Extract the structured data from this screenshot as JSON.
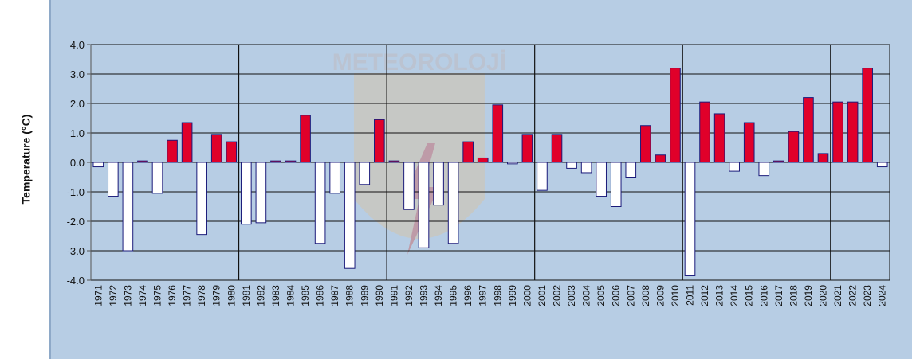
{
  "chart_data": {
    "type": "bar",
    "title": "",
    "xlabel": "",
    "ylabel": "Temperature (°C)",
    "ylim": [
      -4.0,
      4.0
    ],
    "yticks": [
      "4.0",
      "3.0",
      "2.0",
      "1.0",
      "0.0",
      "-1.0",
      "-2.0",
      "-3.0",
      "-4.0"
    ],
    "grid": true,
    "categories": [
      "1971",
      "1972",
      "1973",
      "1974",
      "1975",
      "1976",
      "1977",
      "1978",
      "1979",
      "1980",
      "1981",
      "1982",
      "1983",
      "1984",
      "1985",
      "1986",
      "1987",
      "1988",
      "1989",
      "1990",
      "1991",
      "1992",
      "1993",
      "1994",
      "1995",
      "1996",
      "1997",
      "1998",
      "1999",
      "2000",
      "2001",
      "2002",
      "2003",
      "2004",
      "2005",
      "2006",
      "2007",
      "2008",
      "2009",
      "2010",
      "2011",
      "2012",
      "2013",
      "2014",
      "2015",
      "2016",
      "2017",
      "2018",
      "2019",
      "2020",
      "2021",
      "2022",
      "2023",
      "2024"
    ],
    "values": [
      -0.15,
      -1.15,
      -3.0,
      0.05,
      -1.05,
      0.75,
      1.35,
      -2.45,
      0.95,
      0.7,
      -2.1,
      -2.05,
      0.05,
      0.05,
      1.6,
      -2.75,
      -1.05,
      -3.6,
      -0.75,
      1.45,
      0.05,
      -1.6,
      -2.9,
      -1.45,
      -2.75,
      0.7,
      0.15,
      1.95,
      -0.05,
      0.95,
      -0.95,
      0.95,
      -0.2,
      -0.35,
      -1.15,
      -1.5,
      -0.5,
      1.25,
      0.25,
      3.2,
      -3.85,
      2.05,
      1.65,
      -0.3,
      1.35,
      -0.45,
      0.05,
      1.05,
      2.2,
      0.3,
      2.05,
      2.05,
      3.2,
      -0.15
    ],
    "colors": {
      "positive": "#e0002a",
      "negative": "#ffffff",
      "outline": "#1a1a7a",
      "grid": "#111111",
      "axis": "#555555"
    },
    "watermark": "METEOROLOJİ"
  }
}
